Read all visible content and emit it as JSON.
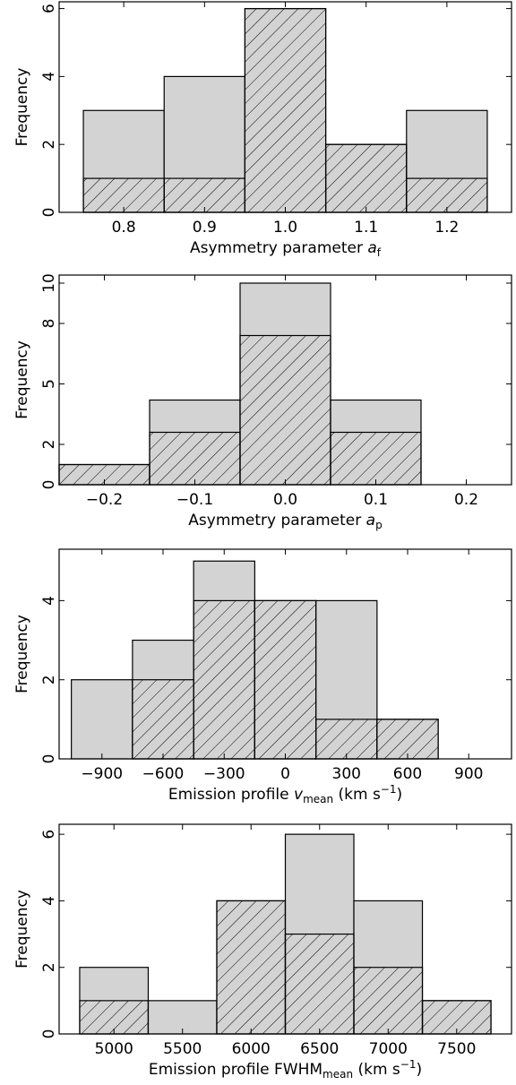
{
  "chart_data": [
    {
      "type": "bar",
      "title": "",
      "xlabel": "Asymmetry parameter ",
      "xlabel_symbol": "a",
      "xlabel_sub": "f",
      "xlabel_tail": "",
      "ylabel": "Frequency",
      "xlim": [
        0.72,
        1.28
      ],
      "ylim": [
        0,
        6.2
      ],
      "xticks": [
        "0.8",
        "0.9",
        "1.0",
        "1.1",
        "1.2"
      ],
      "xtick_values": [
        0.8,
        0.9,
        1.0,
        1.1,
        1.2
      ],
      "yticks": [
        "0",
        "2",
        "4",
        "6"
      ],
      "ytick_values": [
        0,
        2,
        4,
        6
      ],
      "bin_edges": [
        0.75,
        0.85,
        0.95,
        1.05,
        1.15,
        1.25
      ],
      "series": [
        {
          "style": "filled",
          "values": [
            3,
            4,
            6,
            2,
            3
          ]
        },
        {
          "style": "hatched",
          "values": [
            1,
            1,
            6,
            2,
            1
          ]
        }
      ]
    },
    {
      "type": "bar",
      "title": "",
      "xlabel": "Asymmetry parameter ",
      "xlabel_symbol": "a",
      "xlabel_sub": "p",
      "xlabel_tail": "",
      "ylabel": "Frequency",
      "xlim": [
        -0.25,
        0.25
      ],
      "ylim": [
        0,
        10.4
      ],
      "xticks": [
        "−0.2",
        "−0.1",
        "0.0",
        "0.1",
        "0.2"
      ],
      "xtick_values": [
        -0.2,
        -0.1,
        0.0,
        0.1,
        0.2
      ],
      "yticks": [
        "0",
        "2",
        "5",
        "8",
        "10"
      ],
      "ytick_values": [
        0,
        2,
        5,
        8,
        10
      ],
      "bin_edges": [
        -0.25,
        -0.15,
        -0.05,
        0.05,
        0.15,
        0.25
      ],
      "series": [
        {
          "style": "filled",
          "values": [
            1,
            4.2,
            10,
            4.2,
            0
          ]
        },
        {
          "style": "hatched",
          "values": [
            1,
            2.6,
            7.4,
            2.6,
            0
          ]
        }
      ]
    },
    {
      "type": "bar",
      "title": "",
      "xlabel": "Emission profile ",
      "xlabel_symbol": "v",
      "xlabel_sub": "mean",
      "xlabel_tail": " (km s",
      "xlabel_sup": "−1",
      "xlabel_close": ")",
      "ylabel": "Frequency",
      "xlim": [
        -1110,
        1110
      ],
      "ylim": [
        0,
        5.3
      ],
      "xticks": [
        "−900",
        "−600",
        "−300",
        "0",
        "300",
        "600",
        "900"
      ],
      "xtick_values": [
        -900,
        -600,
        -300,
        0,
        300,
        600,
        900
      ],
      "yticks": [
        "0",
        "2",
        "4"
      ],
      "ytick_values": [
        0,
        2,
        4
      ],
      "bin_edges": [
        -1050,
        -750,
        -450,
        -150,
        150,
        450,
        750,
        1050
      ],
      "series": [
        {
          "style": "filled",
          "values": [
            2,
            3,
            5,
            4,
            4,
            1,
            0
          ]
        },
        {
          "style": "hatched",
          "values": [
            0,
            2,
            4,
            4,
            1,
            1,
            0
          ]
        }
      ]
    },
    {
      "type": "bar",
      "title": "",
      "xlabel": "Emission profile FWHM",
      "xlabel_symbol": "",
      "xlabel_sub": "mean",
      "xlabel_tail": " (km s",
      "xlabel_sup": "−1",
      "xlabel_close": ")",
      "ylabel": "Frequency",
      "xlim": [
        4600,
        7900
      ],
      "ylim": [
        0,
        6.3
      ],
      "xticks": [
        "5000",
        "5500",
        "6000",
        "6500",
        "7000",
        "7500"
      ],
      "xtick_values": [
        5000,
        5500,
        6000,
        6500,
        7000,
        7500
      ],
      "yticks": [
        "0",
        "2",
        "4",
        "6"
      ],
      "ytick_values": [
        0,
        2,
        4,
        6
      ],
      "bin_edges": [
        4750,
        5250,
        5750,
        6250,
        6750,
        7250,
        7750
      ],
      "series": [
        {
          "style": "filled",
          "values": [
            2,
            1,
            4,
            6,
            4,
            1
          ]
        },
        {
          "style": "hatched",
          "values": [
            1,
            0,
            4,
            3,
            2,
            1
          ]
        }
      ]
    }
  ],
  "colors": {
    "fill": "#d3d3d3",
    "edge": "#000000",
    "hatch": "#000000",
    "background": "#ffffff"
  }
}
